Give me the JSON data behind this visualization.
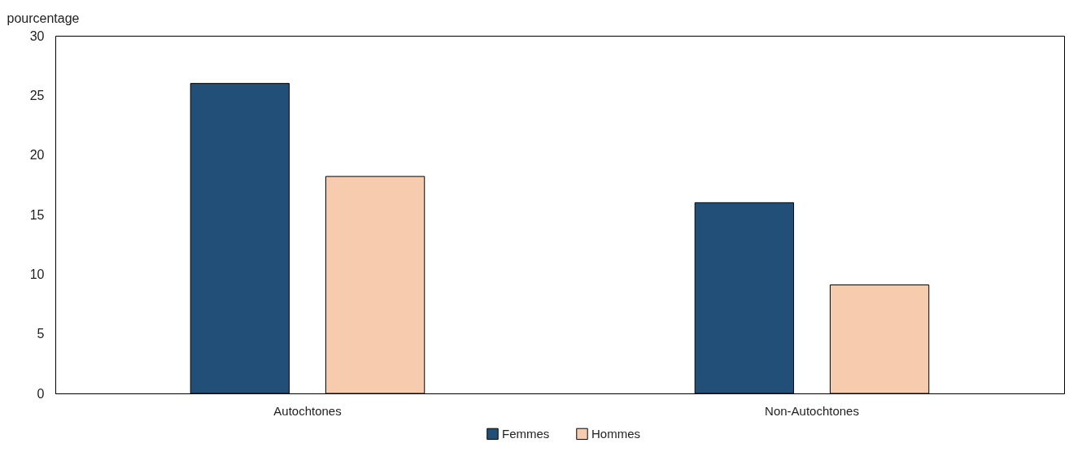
{
  "chart_data": {
    "type": "bar",
    "ylabel": "pourcentage",
    "categories": [
      "Autochtones",
      "Non-Autochtones"
    ],
    "series": [
      {
        "name": "Femmes",
        "color": "#214f78",
        "values": [
          26,
          16
        ]
      },
      {
        "name": "Hommes",
        "color": "#f7cbad",
        "values": [
          18.2,
          9.1
        ]
      }
    ],
    "ylim": [
      0,
      30
    ],
    "yticks": [
      0,
      5,
      10,
      15,
      20,
      25,
      30
    ],
    "grid": false,
    "legend": "bottom"
  }
}
